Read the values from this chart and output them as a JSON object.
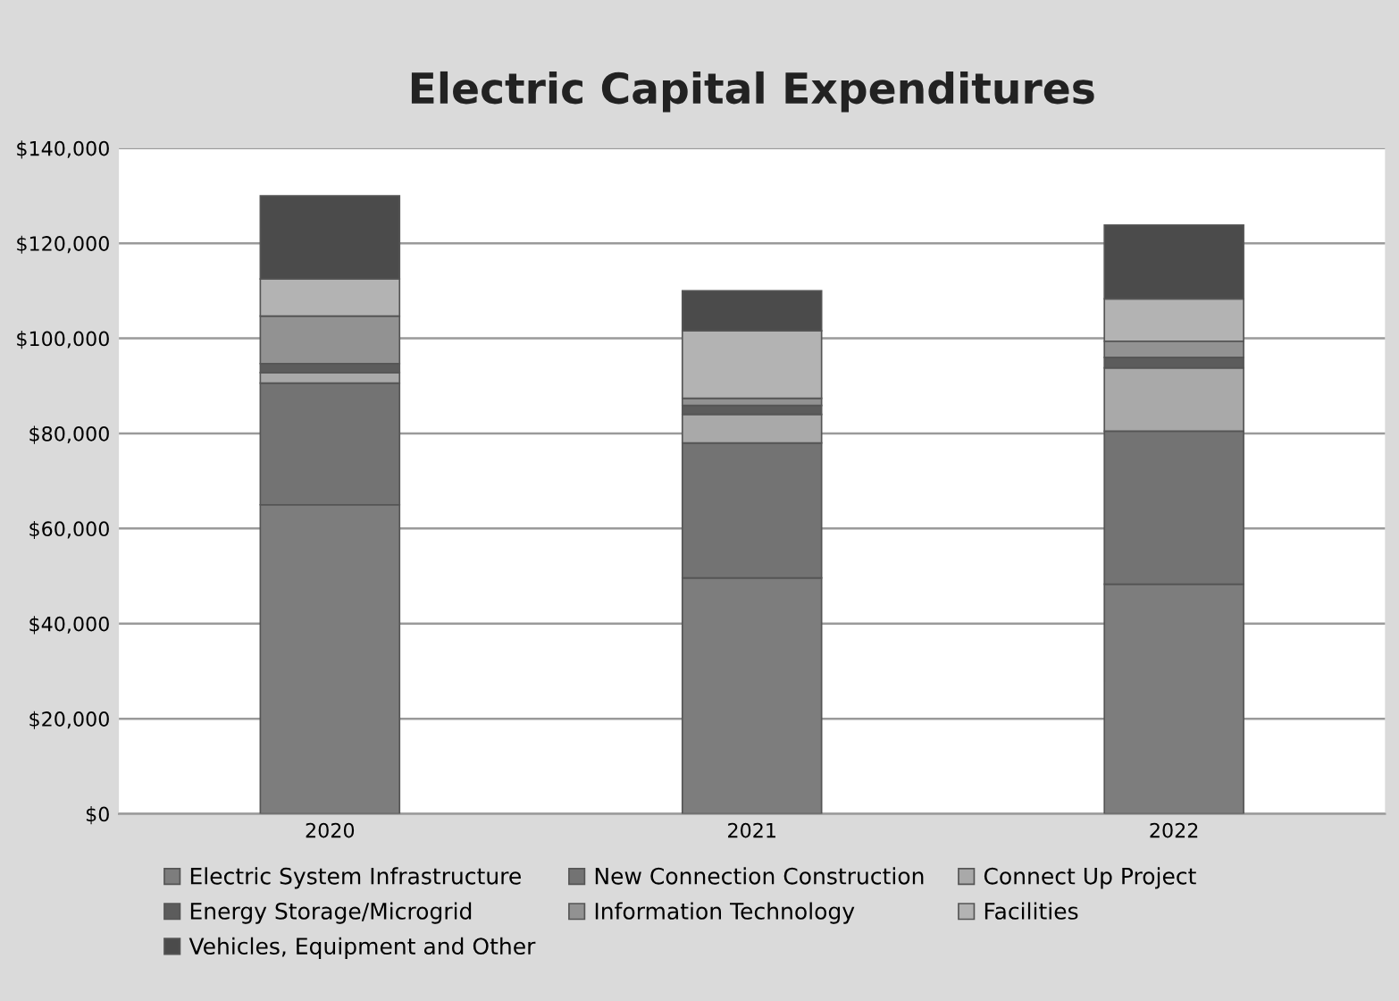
{
  "chart_data": {
    "type": "bar",
    "title": "Electric Capital Expenditures",
    "stacked": true,
    "categories": [
      "2020",
      "2021",
      "2022"
    ],
    "series": [
      {
        "name": "Electric System Infrastructure",
        "color": "#7d7d7d",
        "values": [
          65000,
          49600,
          48300
        ]
      },
      {
        "name": "New Connection Construction",
        "color": "#737373",
        "values": [
          25600,
          28400,
          32200
        ]
      },
      {
        "name": "Connect Up Project",
        "color": "#a9a9a9",
        "values": [
          2200,
          6000,
          13300
        ]
      },
      {
        "name": "Energy Storage/Microgrid",
        "color": "#5c5c5c",
        "values": [
          1900,
          1900,
          2200
        ]
      },
      {
        "name": "Information Technology",
        "color": "#929292",
        "values": [
          10000,
          1500,
          3400
        ]
      },
      {
        "name": "Facilities",
        "color": "#b3b3b3",
        "values": [
          7800,
          14200,
          8900
        ]
      },
      {
        "name": "Vehicles, Equipment and Other",
        "color": "#4b4b4b",
        "values": [
          17500,
          8400,
          15500
        ]
      }
    ],
    "ylim": [
      0,
      140000
    ],
    "yticks": [
      {
        "value": 0,
        "label": "$0"
      },
      {
        "value": 20000,
        "label": "$20,000"
      },
      {
        "value": 40000,
        "label": "$40,000"
      },
      {
        "value": 60000,
        "label": "$60,000"
      },
      {
        "value": 80000,
        "label": "$80,000"
      },
      {
        "value": 100000,
        "label": "$100,000"
      },
      {
        "value": 120000,
        "label": "$120,000"
      },
      {
        "value": 140000,
        "label": "$140,000"
      }
    ],
    "grid": "y",
    "legend": "bottom"
  }
}
